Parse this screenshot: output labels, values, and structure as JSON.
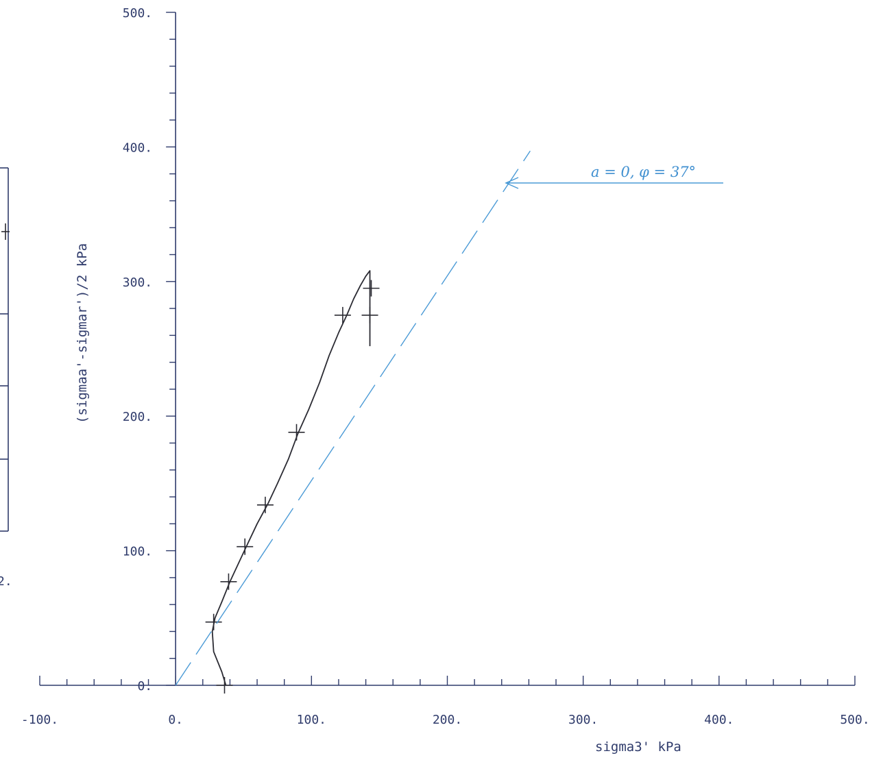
{
  "chart_data": {
    "type": "line",
    "title": "",
    "xlabel": "sigma3' kPa",
    "ylabel": "(sigmaa'-sigmar')/2 kPa",
    "xlim": [
      -100,
      500
    ],
    "ylim": [
      0,
      500
    ],
    "x_ticks": [
      "-100.",
      "0.",
      "100.",
      "200.",
      "300.",
      "400.",
      "500."
    ],
    "y_ticks": [
      "0.",
      "100.",
      "200.",
      "300.",
      "400.",
      "500."
    ],
    "grid": false,
    "series": [
      {
        "style": "solid",
        "color": "#2b2b33",
        "x": [
          37,
          34,
          28,
          27,
          29,
          34,
          40,
          46,
          52,
          60,
          68,
          75,
          83,
          90,
          98,
          106,
          113,
          120,
          126,
          131,
          136,
          140,
          143,
          143,
          143,
          143,
          143
        ],
        "y": [
          0,
          10,
          25,
          40,
          50,
          62,
          77,
          90,
          103,
          120,
          135,
          150,
          168,
          187,
          205,
          225,
          245,
          262,
          275,
          287,
          297,
          304,
          308,
          300,
          285,
          270,
          252
        ]
      },
      {
        "style": "markers",
        "marker": "+",
        "color": "#2b2b33",
        "x": [
          36,
          28,
          39,
          51,
          66,
          89,
          123,
          144,
          143
        ],
        "y": [
          0,
          47,
          77,
          103,
          134,
          188,
          275,
          295,
          275
        ]
      },
      {
        "style": "dashed",
        "color": "#4a9ad6",
        "x": [
          0,
          261
        ],
        "y": [
          0,
          397
        ]
      }
    ],
    "annotations": [
      {
        "text": "a = 0,  φ = 37°",
        "color": "#3f8fd0"
      }
    ],
    "partial_left_panel": {
      "tick_label": "2."
    }
  }
}
